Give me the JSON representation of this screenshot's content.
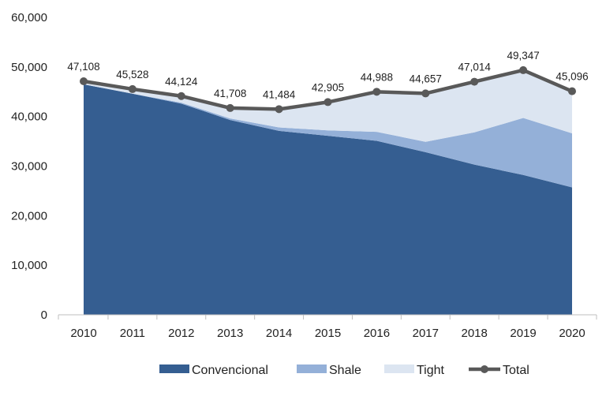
{
  "chart_data": {
    "type": "area",
    "title": "",
    "xlabel": "",
    "ylabel": "",
    "categories": [
      "2010",
      "2011",
      "2012",
      "2013",
      "2014",
      "2015",
      "2016",
      "2017",
      "2018",
      "2019",
      "2020"
    ],
    "ylim": [
      0,
      60000
    ],
    "yticks": [
      0,
      10000,
      20000,
      30000,
      40000,
      50000,
      60000
    ],
    "ytick_labels": [
      "0",
      "10,000",
      "20,000",
      "30,000",
      "40,000",
      "50,000",
      "60,000"
    ],
    "grid": false,
    "legend_position": "bottom",
    "series": [
      {
        "name": "Convencional",
        "kind": "area",
        "color": "#355e91",
        "values": [
          46500,
          44600,
          42600,
          39300,
          37100,
          36100,
          35100,
          32800,
          30300,
          28200,
          25700
        ]
      },
      {
        "name": "Shale",
        "kind": "area",
        "color": "#94b0d8",
        "values": [
          0,
          0,
          200,
          300,
          700,
          1100,
          1800,
          2100,
          6500,
          11500,
          10900
        ]
      },
      {
        "name": "Tight",
        "kind": "area",
        "color": "#dce5f1",
        "values": [
          608,
          928,
          1324,
          2108,
          3684,
          5705,
          8088,
          9757,
          10214,
          9647,
          8496
        ]
      },
      {
        "name": "Total",
        "kind": "line",
        "color": "#595959",
        "values": [
          47108,
          45528,
          44124,
          41708,
          41484,
          42905,
          44988,
          44657,
          47014,
          49347,
          45096
        ]
      }
    ],
    "data_labels": [
      "47,108",
      "45,528",
      "44,124",
      "41,708",
      "41,484",
      "42,905",
      "44,988",
      "44,657",
      "47,014",
      "49,347",
      "45,096"
    ]
  }
}
